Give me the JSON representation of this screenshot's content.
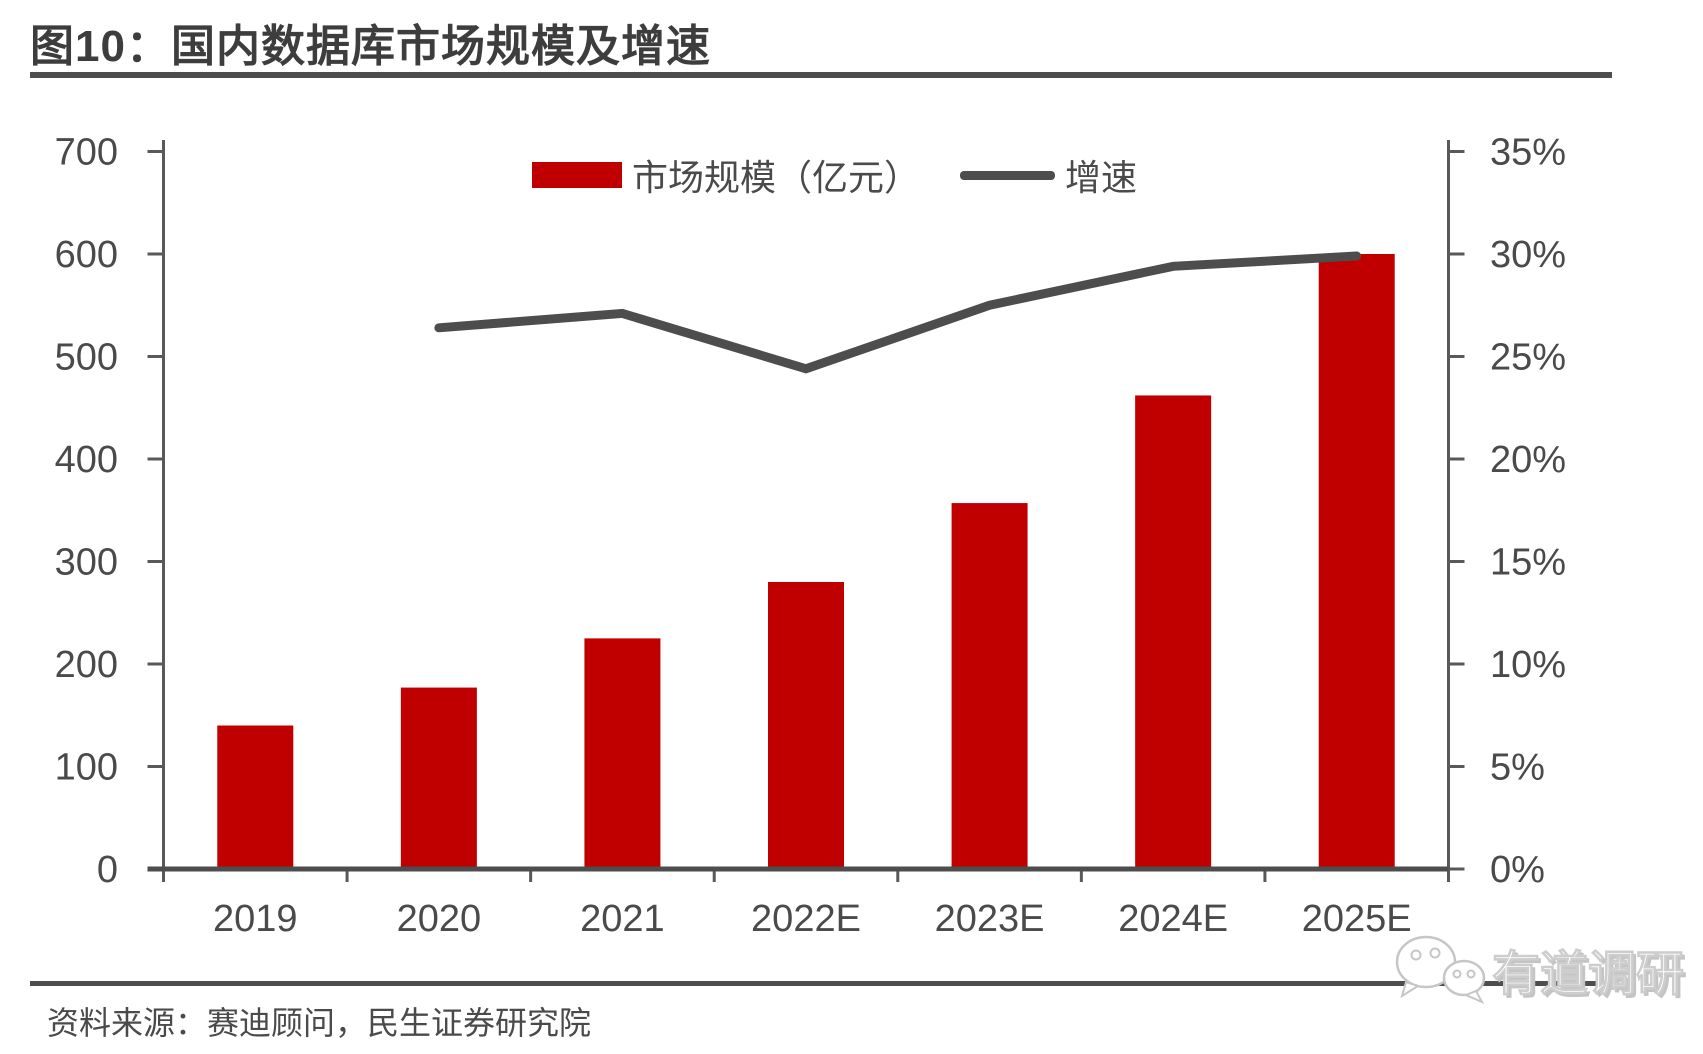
{
  "header": {
    "title": "图10：国内数据库市场规模及增速"
  },
  "legend": [
    {
      "label": "市场规模（亿元）",
      "type": "bar-swatch",
      "color": "#c00000"
    },
    {
      "label": "增速",
      "type": "line-swatch",
      "color": "#4d4d4d"
    }
  ],
  "chart_data": {
    "type": "bar+line",
    "title": "图10：国内数据库市场规模及增速",
    "categories": [
      "2019",
      "2020",
      "2021",
      "2022E",
      "2023E",
      "2024E",
      "2025E"
    ],
    "series": [
      {
        "name": "市场规模（亿元）",
        "type": "bar",
        "axis": "left",
        "color": "#c00000",
        "values": [
          140,
          177,
          225,
          280,
          357,
          462,
          600
        ]
      },
      {
        "name": "增速",
        "type": "line",
        "axis": "right",
        "color": "#4d4d4d",
        "unit": "%",
        "values": [
          null,
          26.4,
          27.1,
          24.4,
          27.5,
          29.4,
          29.9
        ]
      }
    ],
    "left_axis": {
      "min": 0,
      "max": 700,
      "step": 100,
      "tick_labels": [
        "0",
        "100",
        "200",
        "300",
        "400",
        "500",
        "600",
        "700"
      ]
    },
    "right_axis": {
      "min": 0,
      "max": 35,
      "step": 5,
      "tick_labels": [
        "0%",
        "5%",
        "10%",
        "15%",
        "20%",
        "25%",
        "30%",
        "35%"
      ]
    },
    "grid": false,
    "legend_position": "top-center"
  },
  "footer": {
    "source": "资料来源：赛迪顾问，民生证券研究院"
  },
  "watermark": {
    "text": "有道调研",
    "icon": "wechat-bubbles-icon"
  },
  "colors": {
    "bar": "#c00000",
    "line": "#4d4d4d",
    "axis": "#595959",
    "tick_text": "#4a4a4a",
    "title_text": "#3d3d3d",
    "rule": "#4d4d4d"
  }
}
